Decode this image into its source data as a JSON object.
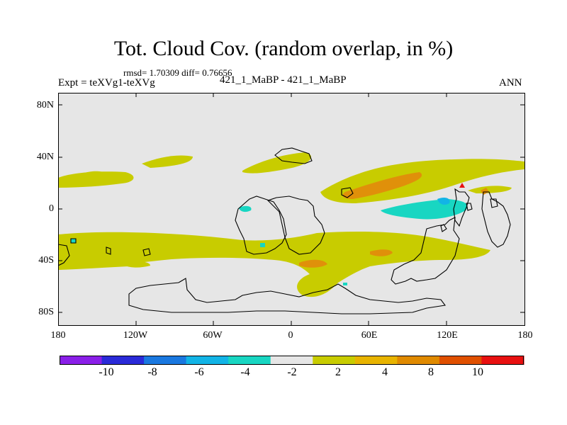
{
  "title": "Tot. Cloud Cov. (random overlap, in %)",
  "stats": "rmsd= 1.70309 diff= 0.76656",
  "expt": "Expt = teXVg1-teXVg",
  "subtitle": "421_1_MaBP - 421_1_MaBP",
  "season": "ANN",
  "y_ticks": [
    "80N",
    "40N",
    "0",
    "40S",
    "80S"
  ],
  "x_ticks": [
    "180",
    "120W",
    "60W",
    "0",
    "60E",
    "120E",
    "180"
  ],
  "colorbar": {
    "colors": [
      "#8a1fe8",
      "#2a2ad8",
      "#1a78e0",
      "#12b4e6",
      "#18d6c2",
      "#e6e6e6",
      "#c8cc00",
      "#e8b400",
      "#e08a00",
      "#e05000",
      "#e81010"
    ],
    "labels": [
      "-10",
      "-8",
      "-6",
      "-4",
      "-2",
      "2",
      "4",
      "8",
      "10"
    ]
  }
}
